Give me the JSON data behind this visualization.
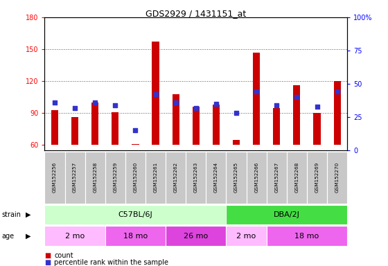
{
  "title": "GDS2929 / 1431151_at",
  "samples": [
    "GSM152256",
    "GSM152257",
    "GSM152258",
    "GSM152259",
    "GSM152260",
    "GSM152261",
    "GSM152262",
    "GSM152263",
    "GSM152264",
    "GSM152265",
    "GSM152266",
    "GSM152267",
    "GSM152268",
    "GSM152269",
    "GSM152270"
  ],
  "counts": [
    93,
    86,
    100,
    91,
    61,
    157,
    108,
    96,
    98,
    65,
    147,
    95,
    116,
    90,
    120
  ],
  "percentiles": [
    36,
    32,
    36,
    34,
    15,
    42,
    36,
    32,
    35,
    28,
    44,
    34,
    40,
    33,
    44
  ],
  "ylim_left": [
    55,
    180
  ],
  "ylim_right": [
    0,
    100
  ],
  "yticks_left": [
    60,
    90,
    120,
    150,
    180
  ],
  "yticks_right": [
    0,
    25,
    50,
    75,
    100
  ],
  "bar_color": "#cc0000",
  "dot_color": "#3333cc",
  "bar_bottom": 60,
  "bar_width": 0.35,
  "strain_groups": [
    {
      "label": "C57BL/6J",
      "start": 0,
      "end": 9,
      "color": "#ccffcc"
    },
    {
      "label": "DBA/2J",
      "start": 9,
      "end": 15,
      "color": "#44dd44"
    }
  ],
  "age_groups": [
    {
      "label": "2 mo",
      "start": 0,
      "end": 3,
      "color": "#ffbbff"
    },
    {
      "label": "18 mo",
      "start": 3,
      "end": 6,
      "color": "#ee66ee"
    },
    {
      "label": "26 mo",
      "start": 6,
      "end": 9,
      "color": "#dd44dd"
    },
    {
      "label": "2 mo",
      "start": 9,
      "end": 11,
      "color": "#ffbbff"
    },
    {
      "label": "18 mo",
      "start": 11,
      "end": 15,
      "color": "#ee66ee"
    }
  ],
  "xtick_bg": "#c8c8c8",
  "plot_bg": "#ffffff",
  "grid_color": "#555555",
  "legend_count_color": "#cc0000",
  "legend_dot_color": "#3333cc"
}
